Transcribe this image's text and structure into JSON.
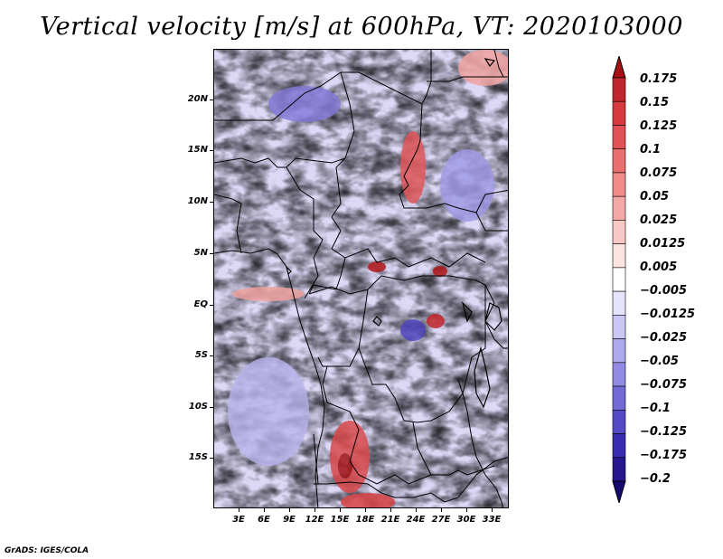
{
  "title": "Vertical velocity [m/s] at 600hPa, VT: 2020103000",
  "footer": "GrADS: IGES/COLA",
  "map": {
    "lat_labels": [
      "20N",
      "15N",
      "10N",
      "5N",
      "EQ",
      "5S",
      "10S",
      "15S"
    ],
    "lon_labels": [
      "3E",
      "6E",
      "9E",
      "12E",
      "15E",
      "18E",
      "21E",
      "24E",
      "27E",
      "30E",
      "33E"
    ],
    "lat_range": [
      -20,
      24.5
    ],
    "lon_range": [
      0,
      35
    ]
  },
  "colorbar": {
    "labels": [
      "0.175",
      "0.15",
      "0.125",
      "0.1",
      "0.075",
      "0.05",
      "0.025",
      "0.0125",
      "0.005",
      "−0.005",
      "−0.0125",
      "−0.025",
      "−0.05",
      "−0.075",
      "−0.1",
      "−0.125",
      "−0.175",
      "−0.2"
    ],
    "colors": [
      "#a50f15",
      "#c0262b",
      "#d73a3d",
      "#e25254",
      "#ea6f6f",
      "#f08c8a",
      "#f4a9a6",
      "#f8c8c5",
      "#fce4e2",
      "#ffffff",
      "#e6e4fa",
      "#cbc7f4",
      "#aea8ec",
      "#9189e2",
      "#736ad6",
      "#5549c6",
      "#3a2cb0",
      "#26178f",
      "#160a6e"
    ]
  }
}
